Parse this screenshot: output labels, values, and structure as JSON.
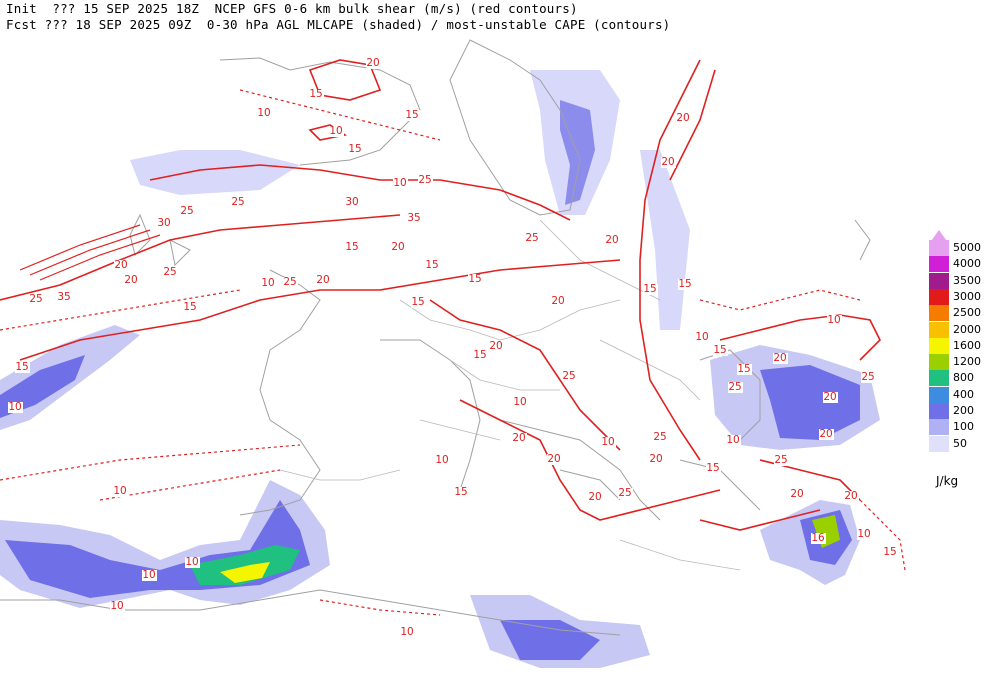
{
  "header": {
    "line1": "Init  ??? 15 SEP 2025 18Z  NCEP GFS 0-6 km bulk shear (m/s) (red contours)",
    "line2": "Fcst ??? 18 SEP 2025 09Z  0-30 hPa AGL MLCAPE (shaded) / most-unstable CAPE (contours)"
  },
  "legend": {
    "unit": "J/kg",
    "levels": [
      {
        "label": "5000",
        "color": "#e6a0f0"
      },
      {
        "label": "4000",
        "color": "#d01fd6"
      },
      {
        "label": "3500",
        "color": "#a01c8c"
      },
      {
        "label": "3000",
        "color": "#e31a1c"
      },
      {
        "label": "2500",
        "color": "#f57c00"
      },
      {
        "label": "2000",
        "color": "#f8c000"
      },
      {
        "label": "1600",
        "color": "#f5f500"
      },
      {
        "label": "1200",
        "color": "#9ad000"
      },
      {
        "label": "800",
        "color": "#20c080"
      },
      {
        "label": "400",
        "color": "#3c8ce0"
      },
      {
        "label": "200",
        "color": "#6f6fe8"
      },
      {
        "label": "100",
        "color": "#b0b0f5"
      },
      {
        "label": "50",
        "color": "#e0e0fb"
      }
    ]
  },
  "contour_labels": [
    "20",
    "15",
    "10",
    "15",
    "10",
    "15",
    "20",
    "20",
    "25",
    "10",
    "30",
    "25",
    "35",
    "25",
    "30",
    "35",
    "20",
    "25",
    "20",
    "25",
    "15",
    "15",
    "20",
    "15",
    "20",
    "25",
    "10",
    "15",
    "15",
    "20",
    "15",
    "20",
    "25",
    "25",
    "20",
    "15",
    "15",
    "10",
    "15",
    "10",
    "20",
    "20",
    "10",
    "15",
    "10",
    "20",
    "25",
    "20",
    "25",
    "25",
    "25",
    "20",
    "20",
    "10",
    "15",
    "25",
    "20",
    "20",
    "16",
    "10",
    "15",
    "10",
    "10",
    "10",
    "10",
    "10",
    "10",
    "15",
    "15",
    "20",
    "10"
  ]
}
